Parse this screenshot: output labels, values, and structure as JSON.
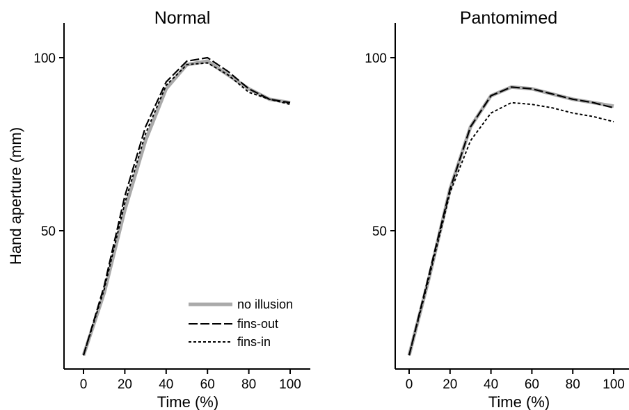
{
  "chart_data": [
    {
      "type": "line",
      "title": "Normal",
      "xlabel": "Time (%)",
      "ylabel": "Hand aperture (mm)",
      "xlim": [
        -5,
        110
      ],
      "ylim": [
        10,
        110
      ],
      "xticks": [
        "0",
        "20",
        "40",
        "60",
        "80",
        "100"
      ],
      "yticks": [
        "50",
        "100"
      ],
      "x": [
        0,
        10,
        20,
        30,
        40,
        50,
        60,
        70,
        80,
        90,
        100
      ],
      "series": [
        {
          "name": "no illusion",
          "color": "#aaaaaa",
          "style": "solid-thick",
          "values": [
            14,
            32,
            56,
            76,
            91,
            98,
            99,
            95,
            91,
            88,
            87
          ]
        },
        {
          "name": "fins-out",
          "color": "#000000",
          "style": "long-dash",
          "values": [
            14,
            34,
            60,
            80,
            93,
            99,
            100,
            96,
            91,
            88,
            87
          ]
        },
        {
          "name": "fins-in",
          "color": "#000000",
          "style": "short-dash",
          "values": [
            14,
            33,
            58,
            78,
            92,
            98,
            98.5,
            95,
            90,
            88,
            86.5
          ]
        }
      ],
      "legend": {
        "placement": "bottom-right",
        "entries": [
          "no illusion",
          "fins-out",
          "fins-in"
        ]
      }
    },
    {
      "type": "line",
      "title": "Pantomimed",
      "xlabel": "Time (%)",
      "ylabel": "",
      "xlim": [
        -5,
        110
      ],
      "ylim": [
        10,
        110
      ],
      "xticks": [
        "0",
        "20",
        "40",
        "60",
        "80",
        "100"
      ],
      "yticks": [
        "50",
        "100"
      ],
      "x": [
        0,
        10,
        20,
        30,
        40,
        50,
        60,
        70,
        80,
        90,
        100
      ],
      "series": [
        {
          "name": "no illusion",
          "color": "#aaaaaa",
          "style": "solid-thick",
          "values": [
            14,
            37,
            62,
            80,
            89,
            91.5,
            91,
            89.5,
            88,
            87,
            86
          ]
        },
        {
          "name": "fins-out",
          "color": "#000000",
          "style": "long-dash",
          "values": [
            14,
            38,
            62,
            80,
            89,
            91.5,
            91,
            89.5,
            88,
            87,
            85.5
          ]
        },
        {
          "name": "fins-in",
          "color": "#000000",
          "style": "short-dash",
          "values": [
            14,
            37,
            61,
            76,
            84,
            87,
            86.5,
            85.5,
            84,
            83,
            81.5
          ]
        }
      ]
    }
  ]
}
